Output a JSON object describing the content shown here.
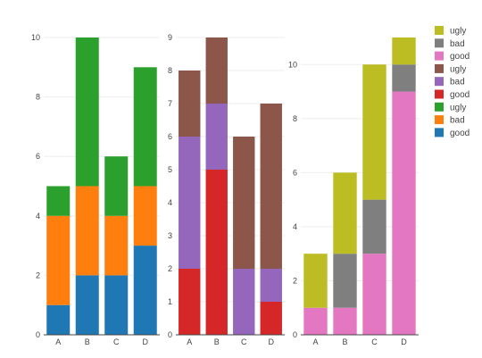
{
  "chart_data": [
    {
      "type": "bar",
      "stacked": true,
      "categories": [
        "A",
        "B",
        "C",
        "D"
      ],
      "ylim": [
        0,
        10
      ],
      "yticks": [
        0,
        2,
        4,
        6,
        8,
        10
      ],
      "series": [
        {
          "name": "good",
          "color": "#1f77b4",
          "values": [
            1,
            2,
            2,
            3
          ]
        },
        {
          "name": "bad",
          "color": "#ff7f0e",
          "values": [
            3,
            3,
            2,
            2
          ]
        },
        {
          "name": "ugly",
          "color": "#2ca02c",
          "values": [
            1,
            5,
            2,
            4
          ]
        }
      ]
    },
    {
      "type": "bar",
      "stacked": true,
      "categories": [
        "A",
        "B",
        "C",
        "D"
      ],
      "ylim": [
        0,
        9
      ],
      "yticks": [
        0,
        1,
        2,
        3,
        4,
        5,
        6,
        7,
        8,
        9
      ],
      "series": [
        {
          "name": "good",
          "color": "#d62728",
          "values": [
            2,
            5,
            0,
            1
          ]
        },
        {
          "name": "bad",
          "color": "#9467bd",
          "values": [
            4,
            2,
            2,
            1
          ]
        },
        {
          "name": "ugly",
          "color": "#8c564b",
          "values": [
            2,
            2,
            4,
            5
          ]
        }
      ]
    },
    {
      "type": "bar",
      "stacked": true,
      "categories": [
        "A",
        "B",
        "C",
        "D"
      ],
      "ylim": [
        0,
        11
      ],
      "yticks": [
        0,
        2,
        4,
        6,
        8,
        10
      ],
      "series": [
        {
          "name": "good",
          "color": "#e377c2",
          "values": [
            1,
            1,
            3,
            9
          ]
        },
        {
          "name": "bad",
          "color": "#7f7f7f",
          "values": [
            0,
            2,
            2,
            1
          ]
        },
        {
          "name": "ugly",
          "color": "#bcbd22",
          "values": [
            2,
            3,
            5,
            1
          ]
        }
      ]
    }
  ],
  "legend": {
    "placement": "top-right",
    "items": [
      {
        "label": "ugly",
        "color": "#bcbd22"
      },
      {
        "label": "bad",
        "color": "#7f7f7f"
      },
      {
        "label": "good",
        "color": "#e377c2"
      },
      {
        "label": "ugly",
        "color": "#8c564b"
      },
      {
        "label": "bad",
        "color": "#9467bd"
      },
      {
        "label": "good",
        "color": "#d62728"
      },
      {
        "label": "ugly",
        "color": "#2ca02c"
      },
      {
        "label": "bad",
        "color": "#ff7f0e"
      },
      {
        "label": "good",
        "color": "#1f77b4"
      }
    ]
  }
}
